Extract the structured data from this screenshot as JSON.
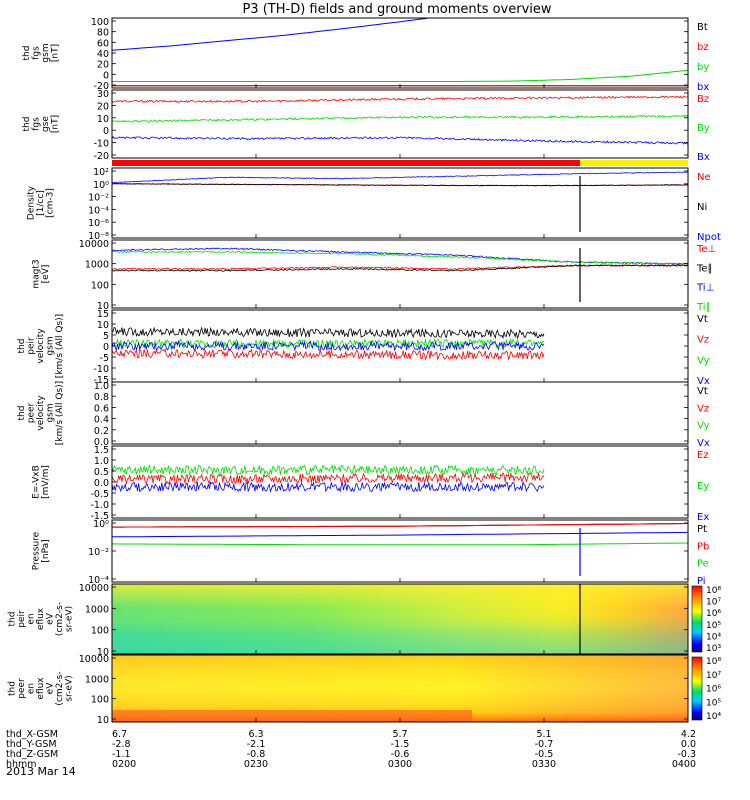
{
  "title": "P3 (TH-D) fields and ground moments overview",
  "date_label": "2013 Mar 14",
  "colors": {
    "black": "#000000",
    "red": "#ff0000",
    "green": "#00dd00",
    "blue": "#0000ff",
    "yellow": "#ffee00"
  },
  "chart_data": [
    {
      "type": "line",
      "panel": "fgs-gsm",
      "ylabel": [
        "thd",
        "fgs",
        "gsm",
        "[nT]"
      ],
      "ylim": [
        -30,
        100
      ],
      "yticks": [
        "100",
        "80",
        "60",
        "40",
        "20",
        "0",
        "-20"
      ],
      "series": [
        {
          "name": "Bt",
          "color": "black",
          "x": [
            0,
            0.5,
            1
          ],
          "y": [
            -26,
            -26,
            -26
          ]
        },
        {
          "name": "bz",
          "color": "red",
          "x": [
            0,
            0.5,
            1
          ],
          "y": [
            -26,
            -26,
            -26
          ]
        },
        {
          "name": "by",
          "color": "green",
          "x": [
            0,
            0.2,
            0.4,
            0.6,
            0.7,
            0.8,
            0.9,
            1
          ],
          "y": [
            -18,
            -18,
            -18,
            -18,
            -17,
            -14,
            -8,
            3
          ]
        },
        {
          "name": "bx",
          "color": "blue",
          "x": [
            0,
            0.1,
            0.2,
            0.3,
            0.4,
            0.5,
            0.55
          ],
          "y": [
            40,
            48,
            58,
            68,
            80,
            93,
            100
          ]
        }
      ]
    },
    {
      "type": "line",
      "panel": "fgs-gse",
      "ylabel": [
        "thd",
        "fgs",
        "gse",
        "[nT]"
      ],
      "ylim": [
        -30,
        30
      ],
      "yticks": [
        "30",
        "20",
        "10",
        "0",
        "-10",
        "-20"
      ],
      "series": [
        {
          "name": "Bz",
          "color": "red",
          "x": [
            0,
            0.25,
            0.5,
            0.75,
            1
          ],
          "y": [
            20,
            20,
            22,
            23,
            24
          ]
        },
        {
          "name": "By",
          "color": "green",
          "x": [
            0,
            0.25,
            0.5,
            0.75,
            1
          ],
          "y": [
            2,
            4,
            6,
            6,
            7
          ]
        },
        {
          "name": "Bx",
          "color": "blue",
          "x": [
            0,
            0.25,
            0.5,
            0.75,
            1
          ],
          "y": [
            -12,
            -13,
            -12,
            -15,
            -17
          ]
        }
      ]
    },
    {
      "type": "line",
      "panel": "density",
      "ylabel": [
        "Density",
        "[1/cc]",
        "[cm-3]"
      ],
      "log": true,
      "ylim": [
        -9,
        3
      ],
      "yticks": [
        "10²",
        "10⁰",
        "10⁻²",
        "10⁻⁴",
        "10⁻⁶",
        "10⁻⁸"
      ],
      "series": [
        {
          "name": "Ne",
          "color": "red",
          "x": [
            0,
            0.2,
            0.4,
            0.6,
            0.8,
            1
          ],
          "y": [
            0.3,
            0.2,
            0.1,
            0,
            0,
            0.1
          ]
        },
        {
          "name": "Ni",
          "color": "black",
          "x": [
            0,
            0.2,
            0.4,
            0.6,
            0.8,
            1
          ],
          "y": [
            0.3,
            0.2,
            0.1,
            0,
            0,
            0.1
          ]
        },
        {
          "name": "Npot",
          "color": "blue",
          "x": [
            0,
            0.2,
            0.4,
            0.6,
            0.8,
            1
          ],
          "y": [
            0.5,
            1.4,
            1.2,
            1.6,
            2,
            2.3
          ]
        }
      ]
    },
    {
      "type": "line",
      "panel": "temperature",
      "ylabel": [
        "magt3",
        "[eV]"
      ],
      "log": true,
      "ylim": [
        0,
        4
      ],
      "yticks": [
        "10000",
        "1000",
        "100",
        "10"
      ],
      "series": [
        {
          "name": "Te⊥",
          "color": "red",
          "x": [
            0,
            0.2,
            0.4,
            0.6,
            0.8,
            1
          ],
          "y": [
            2.3,
            2.3,
            2.4,
            2.3,
            2.5,
            2.5
          ]
        },
        {
          "name": "Te∥",
          "color": "black",
          "x": [
            0,
            0.2,
            0.4,
            0.6,
            0.8,
            1
          ],
          "y": [
            2.2,
            2.2,
            2.3,
            2.2,
            2.5,
            2.5
          ]
        },
        {
          "name": "Ti⊥",
          "color": "blue",
          "x": [
            0,
            0.2,
            0.4,
            0.6,
            0.8,
            1
          ],
          "y": [
            3.4,
            3.5,
            3.3,
            3.1,
            2.7,
            2.6
          ]
        },
        {
          "name": "Ti∥",
          "color": "green",
          "x": [
            0,
            0.2,
            0.4,
            0.6,
            0.8,
            1
          ],
          "y": [
            3.3,
            3.3,
            3.2,
            3.0,
            2.7,
            2.6
          ]
        }
      ]
    },
    {
      "type": "line",
      "panel": "peir-velocity",
      "ylabel": [
        "thd",
        "peir",
        "velocity",
        "gsm",
        "[km/s (All Qs)]"
      ],
      "ylim": [
        -15,
        15
      ],
      "yticks": [
        "15",
        "10",
        "5",
        "0",
        "-5",
        "-10",
        "-15"
      ],
      "series": [
        {
          "name": "Vt",
          "color": "black",
          "x": [
            0,
            0.75
          ],
          "y": [
            6,
            5
          ]
        },
        {
          "name": "Vz",
          "color": "red",
          "x": [
            0,
            0.75
          ],
          "y": [
            -3,
            -4
          ]
        },
        {
          "name": "Vy",
          "color": "green",
          "x": [
            0,
            0.75
          ],
          "y": [
            1,
            1
          ]
        },
        {
          "name": "Vx",
          "color": "blue",
          "x": [
            0,
            0.75
          ],
          "y": [
            0,
            0
          ]
        }
      ]
    },
    {
      "type": "line",
      "panel": "peer-velocity",
      "ylabel": [
        "thd",
        "peer",
        "velocity",
        "gsm",
        "[km/s (All Qs)]"
      ],
      "ylim": [
        0,
        1
      ],
      "yticks": [
        "1.0",
        "0.8",
        "0.6",
        "0.4",
        "0.2",
        "0.0"
      ],
      "series": [
        {
          "name": "Vt",
          "color": "black",
          "x": [],
          "y": []
        },
        {
          "name": "Vz",
          "color": "red",
          "x": [],
          "y": []
        },
        {
          "name": "Vy",
          "color": "green",
          "x": [],
          "y": []
        },
        {
          "name": "Vx",
          "color": "blue",
          "x": [],
          "y": []
        }
      ]
    },
    {
      "type": "line",
      "panel": "efield",
      "ylabel": [
        "E=-VxB",
        "[mV/m]"
      ],
      "ylim": [
        -1.5,
        1.5
      ],
      "yticks": [
        "1.5",
        "1.0",
        "0.5",
        "0.0",
        "-0.5",
        "-1.0",
        "-1.5"
      ],
      "series": [
        {
          "name": "Ez",
          "color": "red",
          "x": [
            0,
            0.75
          ],
          "y": [
            0.1,
            0.2
          ]
        },
        {
          "name": "Ey",
          "color": "green",
          "x": [
            0,
            0.75
          ],
          "y": [
            0.5,
            0.5
          ]
        },
        {
          "name": "Ex",
          "color": "blue",
          "x": [
            0,
            0.75
          ],
          "y": [
            -0.2,
            -0.2
          ]
        }
      ]
    },
    {
      "type": "line",
      "panel": "pressure",
      "ylabel": [
        "Pressure",
        "[nPa]"
      ],
      "log": true,
      "ylim": [
        -6,
        1
      ],
      "yticks": [
        "10⁰",
        "10⁻²",
        "10⁻⁴"
      ],
      "series": [
        {
          "name": "Pt",
          "color": "black",
          "x": [
            0,
            0.5,
            1
          ],
          "y": [
            0.2,
            0.3,
            0.6
          ]
        },
        {
          "name": "Pb",
          "color": "red",
          "x": [
            0,
            0.5,
            1
          ],
          "y": [
            0.2,
            0.3,
            0.6
          ]
        },
        {
          "name": "Pe",
          "color": "green",
          "x": [
            0,
            0.4,
            0.7,
            1
          ],
          "y": [
            -1.7,
            -1.8,
            -1.8,
            -1.6
          ]
        },
        {
          "name": "Pi",
          "color": "blue",
          "x": [
            0,
            0.5,
            1
          ],
          "y": [
            -0.9,
            -0.7,
            -0.4
          ]
        }
      ]
    },
    {
      "type": "heatmap",
      "panel": "peir-eflux",
      "ylabel": [
        "thd",
        "peir",
        "en",
        "eflux",
        "eV",
        "(cm2-s-",
        "sr-eV)"
      ],
      "yticks": [
        "10000",
        "1000",
        "100",
        "10"
      ],
      "colorbar_ticks": [
        "10⁸",
        "10⁷",
        "10⁶",
        "10⁵",
        "10⁴",
        "10³"
      ]
    },
    {
      "type": "heatmap",
      "panel": "peer-eflux",
      "ylabel": [
        "thd",
        "peer",
        "en",
        "eflux",
        "eV",
        "(cm2-s-",
        "sr-eV)"
      ],
      "yticks": [
        "10000",
        "1000",
        "100",
        "10"
      ],
      "colorbar_ticks": [
        "10⁸",
        "10⁷",
        "10⁶",
        "10⁵",
        "10⁴"
      ]
    }
  ],
  "xaxis": {
    "rows": [
      {
        "label": "thd_X-GSM",
        "values": [
          "6.7",
          "6.3",
          "5.7",
          "5.1",
          "4.2"
        ]
      },
      {
        "label": "thd_Y-GSM",
        "values": [
          "-2.8",
          "-2.1",
          "-1.5",
          "-0.7",
          "0.0"
        ]
      },
      {
        "label": "thd_Z-GSM",
        "values": [
          "-1.1",
          "-0.8",
          "-0.6",
          "-0.5",
          "-0.3"
        ]
      },
      {
        "label": "hhmm",
        "values": [
          "0200",
          "0230",
          "0300",
          "0330",
          "0400"
        ]
      }
    ]
  }
}
